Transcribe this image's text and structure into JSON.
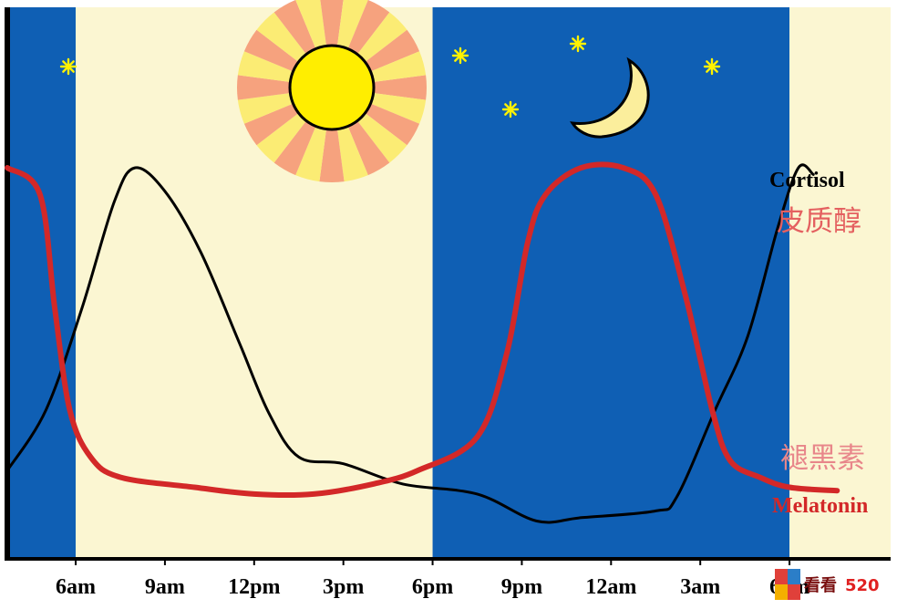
{
  "chart_data": {
    "type": "line",
    "x_ticks": [
      "6am",
      "9am",
      "12pm",
      "3pm",
      "6pm",
      "9pm",
      "12am",
      "3am",
      "6am"
    ],
    "series": [
      {
        "name": "Cortisol",
        "name_cn": "皮质醇",
        "color": "#000000",
        "points": [
          [
            3.7,
            0.1
          ],
          [
            5.0,
            0.28
          ],
          [
            6.2,
            0.58
          ],
          [
            7.3,
            0.9
          ],
          [
            8.0,
            1.0
          ],
          [
            9.0,
            0.93
          ],
          [
            10.2,
            0.75
          ],
          [
            11.5,
            0.48
          ],
          [
            12.5,
            0.27
          ],
          [
            13.5,
            0.14
          ],
          [
            15.0,
            0.12
          ],
          [
            17.0,
            0.06
          ],
          [
            19.5,
            0.03
          ],
          [
            21.5,
            -0.05
          ],
          [
            23.0,
            -0.04
          ],
          [
            25.5,
            -0.02
          ],
          [
            26.2,
            0.02
          ],
          [
            27.5,
            0.28
          ],
          [
            28.6,
            0.5
          ],
          [
            29.6,
            0.82
          ],
          [
            30.3,
            1.0
          ],
          [
            30.8,
            0.98
          ]
        ]
      },
      {
        "name": "Melatonin",
        "name_cn": "褪黑素",
        "color": "#d32828",
        "points": [
          [
            3.7,
            1.0
          ],
          [
            4.8,
            0.92
          ],
          [
            5.3,
            0.58
          ],
          [
            5.8,
            0.28
          ],
          [
            6.5,
            0.14
          ],
          [
            7.5,
            0.08
          ],
          [
            10.0,
            0.05
          ],
          [
            12.0,
            0.03
          ],
          [
            14.0,
            0.03
          ],
          [
            16.0,
            0.06
          ],
          [
            17.5,
            0.1
          ],
          [
            19.5,
            0.2
          ],
          [
            20.5,
            0.45
          ],
          [
            21.2,
            0.78
          ],
          [
            21.8,
            0.92
          ],
          [
            23.0,
            1.0
          ],
          [
            24.4,
            1.0
          ],
          [
            25.5,
            0.92
          ],
          [
            26.5,
            0.62
          ],
          [
            27.4,
            0.28
          ],
          [
            28.0,
            0.13
          ],
          [
            29.0,
            0.08
          ],
          [
            30.0,
            0.05
          ],
          [
            31.6,
            0.04
          ]
        ]
      }
    ],
    "bands": [
      {
        "from": 3.7,
        "to": 6.0,
        "phase": "night"
      },
      {
        "from": 6.0,
        "to": 18.0,
        "phase": "day"
      },
      {
        "from": 18.0,
        "to": 30.0,
        "phase": "night"
      },
      {
        "from": 30.0,
        "to": 33.4,
        "phase": "day"
      }
    ],
    "colors": {
      "night": "#0f5fb4",
      "day": "#fbf6d2",
      "sun": "#ffee00",
      "sun_rays_dark": "#f6a27e",
      "sun_rays_light": "#fbec74",
      "moon": "#fbee9c",
      "stars": "#fff200",
      "axis": "#000000"
    }
  },
  "watermark": {
    "text_cn": "看看",
    "text_num": "520"
  }
}
